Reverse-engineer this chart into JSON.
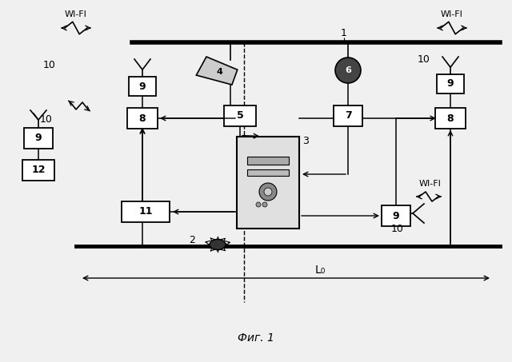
{
  "title": "Фиг. 1",
  "background_color": "#f0f0f0",
  "wifi_topleft": "WI-FI",
  "wifi_topright": "WI-FI",
  "wifi_botright": "WI-FI",
  "label_1": "1",
  "label_2": "2",
  "label_3": "3",
  "label_4": "4",
  "label_5": "5",
  "label_6": "6",
  "label_7": "7",
  "label_8": "8",
  "label_9": "9",
  "label_10": "10",
  "label_11": "11",
  "label_12": "12",
  "L0_label": "L₀"
}
